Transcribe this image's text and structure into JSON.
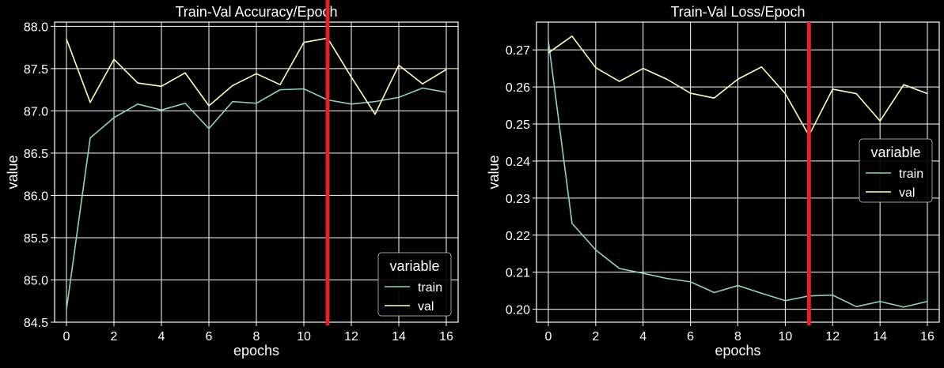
{
  "chart_data": [
    {
      "type": "line",
      "title": "Train-Val Accuracy/Epoch",
      "xlabel": "epochs",
      "ylabel": "value",
      "xlim": [
        -0.5,
        16.5
      ],
      "ylim": [
        84.5,
        88.05
      ],
      "xticks": [
        0,
        2,
        4,
        6,
        8,
        10,
        12,
        14,
        16
      ],
      "yticks": [
        84.5,
        85.0,
        85.5,
        86.0,
        86.5,
        87.0,
        87.5,
        88.0
      ],
      "ytick_labels": [
        "84.5",
        "85.0",
        "85.5",
        "86.0",
        "86.5",
        "87.0",
        "87.5",
        "88.0"
      ],
      "grid": true,
      "legend": {
        "title": "variable",
        "placement": "bottom-right"
      },
      "marker_line": {
        "x": 11,
        "color": "#e8202a"
      },
      "x": [
        0,
        1,
        2,
        3,
        4,
        5,
        6,
        7,
        8,
        9,
        10,
        11,
        12,
        13,
        14,
        15,
        16
      ],
      "series": [
        {
          "name": "train",
          "color": "#8dd3c7",
          "values": [
            84.65,
            86.68,
            86.92,
            87.08,
            87.01,
            87.09,
            86.79,
            87.11,
            87.09,
            87.25,
            87.26,
            87.13,
            87.08,
            87.11,
            87.16,
            87.27,
            87.22
          ]
        },
        {
          "name": "val",
          "color": "#feffb3",
          "values": [
            87.85,
            87.1,
            87.61,
            87.33,
            87.29,
            87.45,
            87.06,
            87.3,
            87.44,
            87.31,
            87.81,
            87.86,
            87.4,
            86.96,
            87.54,
            87.32,
            87.49
          ]
        }
      ]
    },
    {
      "type": "line",
      "title": "Train-Val Loss/Epoch",
      "xlabel": "epochs",
      "ylabel": "value",
      "xlim": [
        -0.5,
        16.5
      ],
      "ylim": [
        0.1965,
        0.2775
      ],
      "xticks": [
        0,
        2,
        4,
        6,
        8,
        10,
        12,
        14,
        16
      ],
      "yticks": [
        0.2,
        0.21,
        0.22,
        0.23,
        0.24,
        0.25,
        0.26,
        0.27
      ],
      "ytick_labels": [
        "0.20",
        "0.21",
        "0.22",
        "0.23",
        "0.24",
        "0.25",
        "0.26",
        "0.27"
      ],
      "grid": true,
      "legend": {
        "title": "variable",
        "placement": "center-right"
      },
      "marker_line": {
        "x": 11,
        "color": "#e8202a"
      },
      "x": [
        0,
        1,
        2,
        3,
        4,
        5,
        6,
        7,
        8,
        9,
        10,
        11,
        12,
        13,
        14,
        15,
        16
      ],
      "series": [
        {
          "name": "train",
          "color": "#8dd3c7",
          "values": [
            0.2725,
            0.2232,
            0.216,
            0.211,
            0.2097,
            0.2083,
            0.2074,
            0.2045,
            0.2064,
            0.2043,
            0.2023,
            0.2036,
            0.2038,
            0.2007,
            0.2021,
            0.2006,
            0.2021
          ]
        },
        {
          "name": "val",
          "color": "#feffb3",
          "values": [
            0.2692,
            0.2737,
            0.2652,
            0.2615,
            0.265,
            0.2621,
            0.2583,
            0.257,
            0.2621,
            0.2654,
            0.2582,
            0.2469,
            0.2594,
            0.2582,
            0.2508,
            0.2606,
            0.2582
          ]
        }
      ]
    }
  ]
}
